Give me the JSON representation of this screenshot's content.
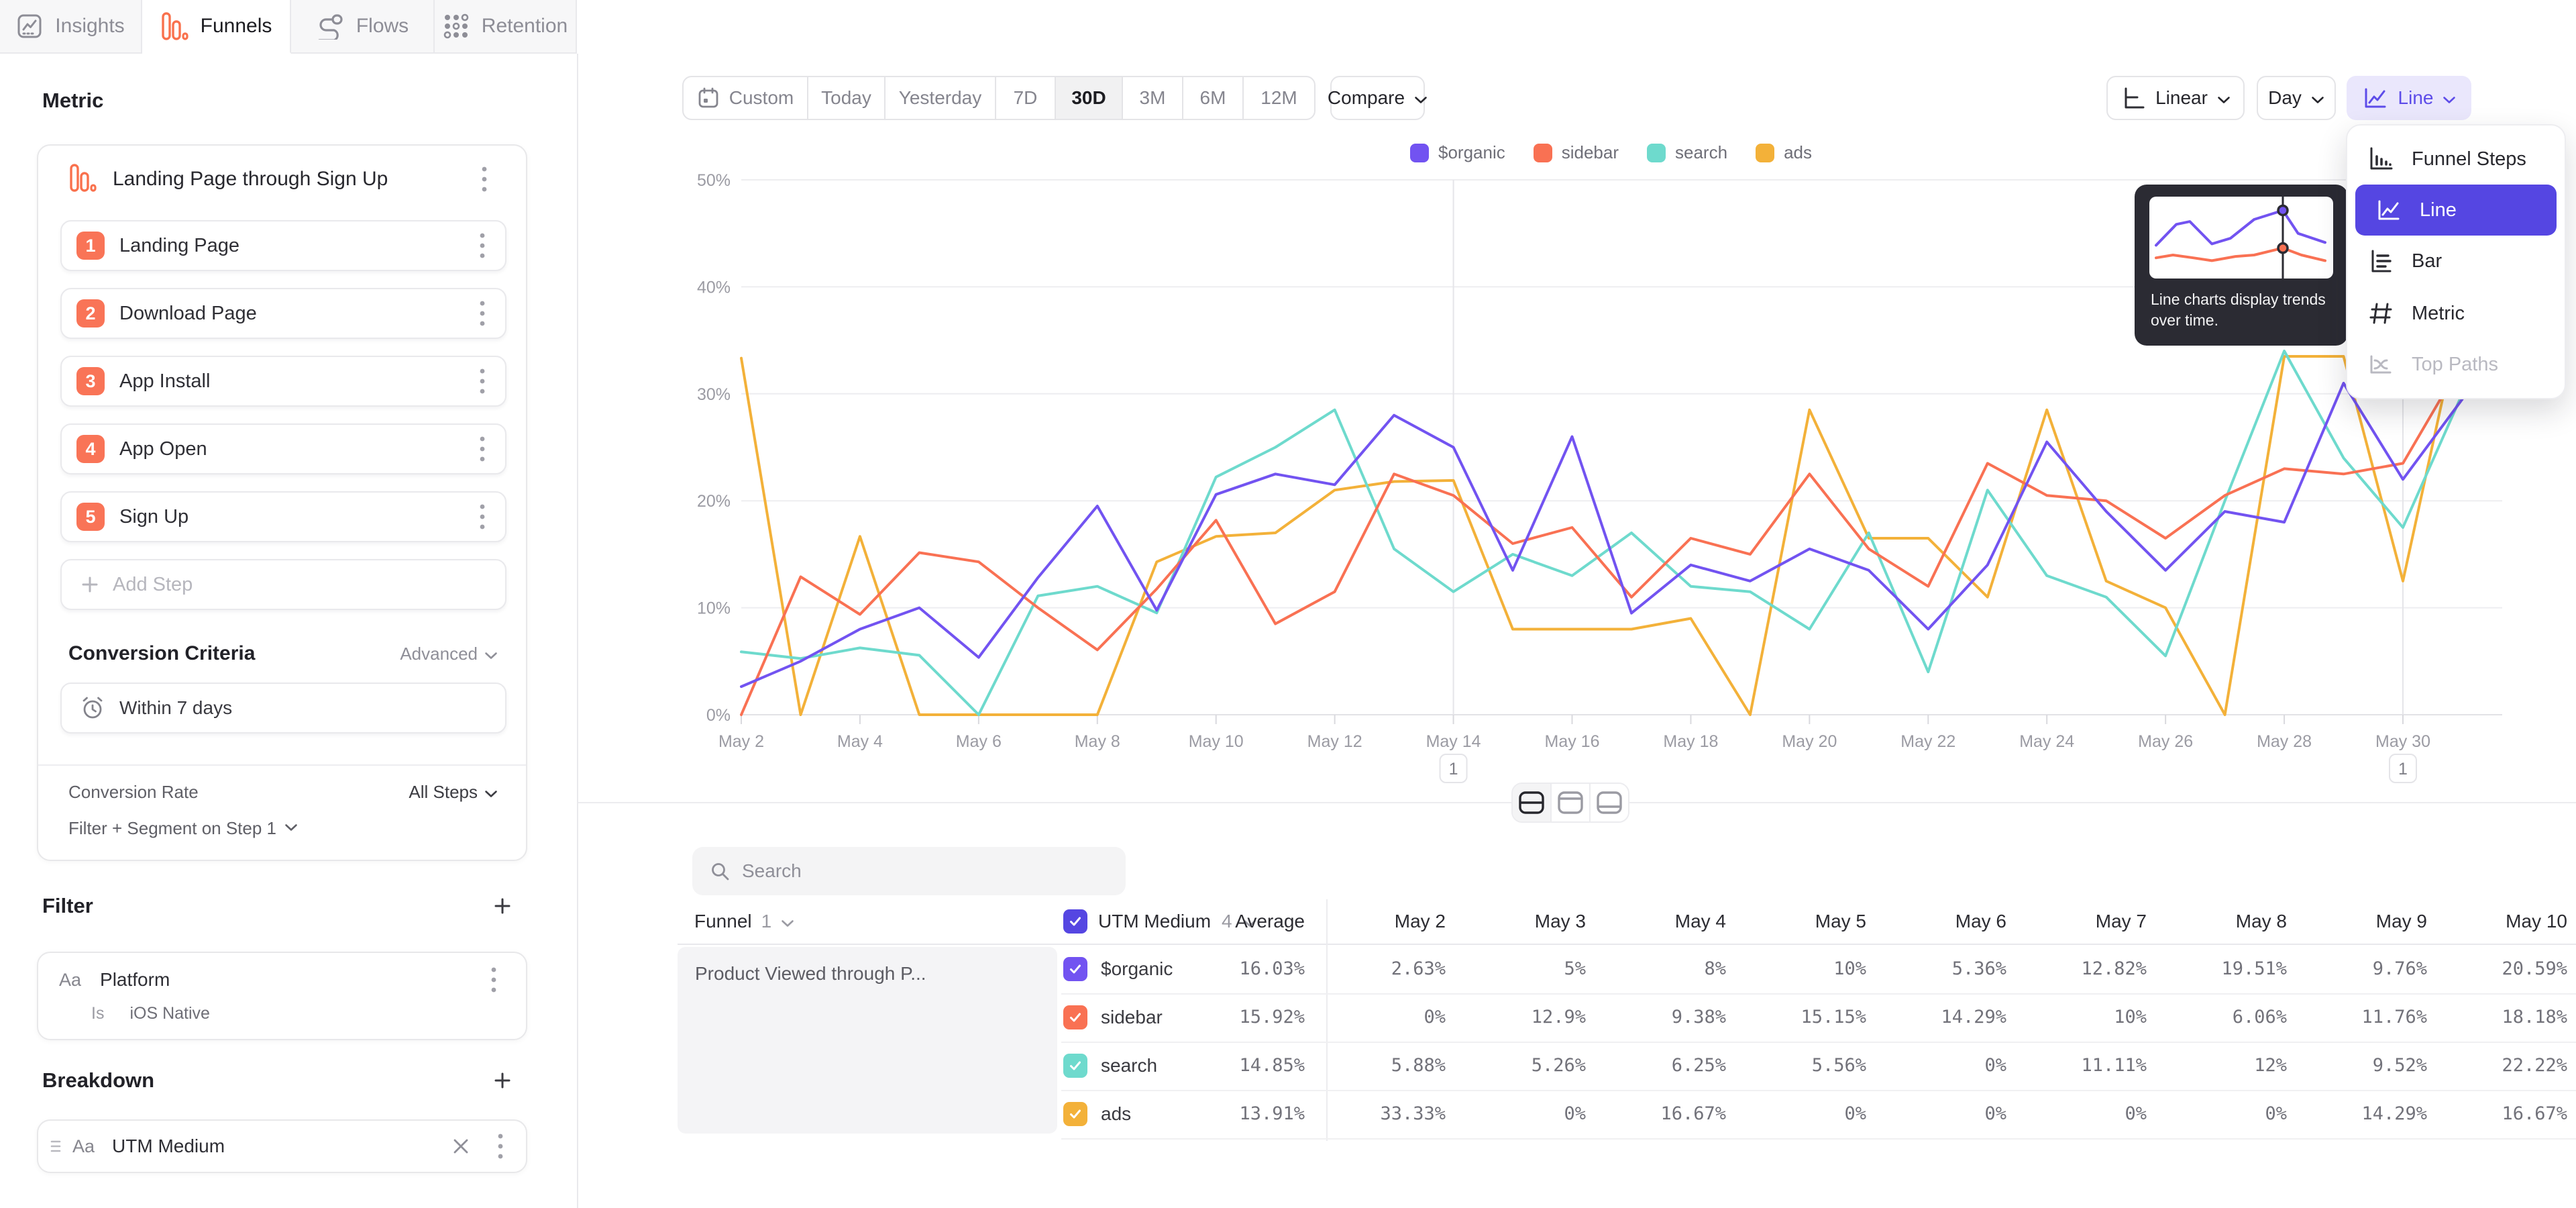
{
  "tabs": {
    "items": [
      {
        "label": "Insights",
        "icon": "insights-icon",
        "active": false
      },
      {
        "label": "Funnels",
        "icon": "funnels-icon",
        "active": true
      },
      {
        "label": "Flows",
        "icon": "flows-icon",
        "active": false
      },
      {
        "label": "Retention",
        "icon": "retention-icon",
        "active": false
      }
    ]
  },
  "sidebar": {
    "metric_label": "Metric",
    "funnel": {
      "title": "Landing Page through Sign Up",
      "steps": [
        {
          "num": "1",
          "label": "Landing Page"
        },
        {
          "num": "2",
          "label": "Download Page"
        },
        {
          "num": "3",
          "label": "App Install"
        },
        {
          "num": "4",
          "label": "App Open"
        },
        {
          "num": "5",
          "label": "Sign Up"
        }
      ],
      "add_step_label": "Add Step"
    },
    "conversion_criteria": {
      "title": "Conversion Criteria",
      "advanced_label": "Advanced",
      "window_label": "Within 7 days",
      "conversion_rate_label": "Conversion Rate",
      "conversion_rate_value": "All Steps",
      "filter_segment_label": "Filter + Segment on Step 1"
    },
    "filter": {
      "title": "Filter",
      "property_type": "Aa",
      "property": "Platform",
      "operator": "Is",
      "value": "iOS Native"
    },
    "breakdown": {
      "title": "Breakdown",
      "property_type": "Aa",
      "property": "UTM Medium"
    }
  },
  "toolbar": {
    "date_ranges": [
      "Custom",
      "Today",
      "Yesterday",
      "7D",
      "30D",
      "3M",
      "6M",
      "12M"
    ],
    "active_range": "30D",
    "compare_label": "Compare",
    "scale_label": "Linear",
    "granularity_label": "Day",
    "chart_type_label": "Line"
  },
  "chart_menu": {
    "items": [
      {
        "label": "Funnel Steps",
        "icon": "funnel-steps-icon",
        "state": "normal"
      },
      {
        "label": "Line",
        "icon": "line-chart-icon",
        "state": "selected"
      },
      {
        "label": "Bar",
        "icon": "bar-chart-icon",
        "state": "normal"
      },
      {
        "label": "Metric",
        "icon": "metric-icon",
        "state": "normal"
      },
      {
        "label": "Top Paths",
        "icon": "top-paths-icon",
        "state": "disabled"
      }
    ]
  },
  "tooltip": {
    "text_line1": "Line charts display trends",
    "text_line2": "over time.",
    "mini_chart": {
      "purple": [
        [
          0,
          62
        ],
        [
          12,
          32
        ],
        [
          20,
          28
        ],
        [
          33,
          60
        ],
        [
          44,
          52
        ],
        [
          58,
          25
        ],
        [
          75,
          12
        ],
        [
          84,
          45
        ],
        [
          100,
          58
        ]
      ],
      "red": [
        [
          0,
          80
        ],
        [
          10,
          76
        ],
        [
          22,
          80
        ],
        [
          33,
          84
        ],
        [
          47,
          78
        ],
        [
          58,
          76
        ],
        [
          75,
          66
        ],
        [
          86,
          76
        ],
        [
          100,
          84
        ]
      ],
      "ruler_x": 75
    }
  },
  "layout_toggle": {
    "options": [
      {
        "name": "split-view",
        "active": true
      },
      {
        "name": "chart-only-view",
        "active": false
      },
      {
        "name": "table-only-view",
        "active": false
      }
    ]
  },
  "table": {
    "search_placeholder": "Search",
    "funnel_col_label": "Funnel",
    "funnel_col_count": "1",
    "breakdown_col_label": "UTM Medium",
    "breakdown_col_count": "4",
    "average_label": "Average",
    "date_columns": [
      "May 2",
      "May 3",
      "May 4",
      "May 5",
      "May 6",
      "May 7",
      "May 8",
      "May 9",
      "May 10"
    ],
    "funnel_cell": "Product Viewed through P...",
    "rows": [
      {
        "name": "$organic",
        "color": "#7253f1",
        "average": "16.03%",
        "values": [
          "2.63%",
          "5%",
          "8%",
          "10%",
          "5.36%",
          "12.82%",
          "19.51%",
          "9.76%",
          "20.59%"
        ]
      },
      {
        "name": "sidebar",
        "color": "#f97153",
        "average": "15.92%",
        "values": [
          "0%",
          "12.9%",
          "9.38%",
          "15.15%",
          "14.29%",
          "10%",
          "6.06%",
          "11.76%",
          "18.18%"
        ]
      },
      {
        "name": "search",
        "color": "#6edacd",
        "average": "14.85%",
        "values": [
          "5.88%",
          "5.26%",
          "6.25%",
          "5.56%",
          "0%",
          "11.11%",
          "12%",
          "9.52%",
          "22.22%"
        ]
      },
      {
        "name": "ads",
        "color": "#f3b139",
        "average": "13.91%",
        "values": [
          "33.33%",
          "0%",
          "16.67%",
          "0%",
          "0%",
          "0%",
          "0%",
          "14.29%",
          "16.67%"
        ]
      }
    ]
  },
  "chart_data": {
    "type": "line",
    "title": "",
    "xlabel": "",
    "ylabel": "",
    "x": [
      "May 2",
      "May 3",
      "May 4",
      "May 5",
      "May 6",
      "May 7",
      "May 8",
      "May 9",
      "May 10",
      "May 11",
      "May 12",
      "May 13",
      "May 14",
      "May 15",
      "May 16",
      "May 17",
      "May 18",
      "May 19",
      "May 20",
      "May 21",
      "May 22",
      "May 23",
      "May 24",
      "May 25",
      "May 26",
      "May 27",
      "May 28",
      "May 29",
      "May 30",
      "May 31"
    ],
    "x_tick_every": 2,
    "ylim": [
      0,
      50
    ],
    "yticks": [
      "0%",
      "10%",
      "20%",
      "30%",
      "40%",
      "50%"
    ],
    "grid": true,
    "legend_position": "top",
    "series": [
      {
        "name": "$organic",
        "color": "#7253f1",
        "values": [
          2.63,
          5,
          8,
          10,
          5.36,
          12.82,
          19.51,
          9.76,
          20.59,
          22.5,
          21.5,
          28,
          25,
          13.5,
          26,
          9.5,
          14,
          12.5,
          15.5,
          13.5,
          8,
          14,
          25.5,
          19,
          13.5,
          19,
          18,
          31,
          22,
          29.5
        ]
      },
      {
        "name": "sidebar",
        "color": "#f97153",
        "values": [
          0,
          12.9,
          9.38,
          15.15,
          14.29,
          10,
          6.06,
          11.76,
          18.18,
          8.5,
          11.5,
          22.5,
          20.5,
          16,
          17.5,
          11,
          16.5,
          15,
          22.5,
          15.5,
          12,
          23.5,
          20.5,
          20,
          16.5,
          20.5,
          23,
          22.5,
          23.5,
          33
        ]
      },
      {
        "name": "search",
        "color": "#6edacd",
        "values": [
          5.88,
          5.26,
          6.25,
          5.56,
          0,
          11.11,
          12,
          9.52,
          22.22,
          25,
          28.5,
          15.5,
          11.5,
          15,
          13,
          17,
          12,
          11.5,
          8,
          17,
          4,
          21,
          13,
          11,
          5.5,
          20,
          34,
          24,
          17.5,
          30
        ]
      },
      {
        "name": "ads",
        "color": "#f3b139",
        "values": [
          33.33,
          0,
          16.67,
          0,
          0,
          0,
          0,
          14.29,
          16.67,
          17,
          21,
          21.8,
          21.9,
          8,
          8,
          8,
          9,
          0,
          28.5,
          16.5,
          16.5,
          11,
          28.5,
          12.5,
          10,
          0,
          33.5,
          33.5,
          12.5,
          38
        ]
      }
    ],
    "annotations": [
      {
        "x": "May 14",
        "label": "1"
      },
      {
        "x": "May 30",
        "label": "1"
      }
    ]
  }
}
